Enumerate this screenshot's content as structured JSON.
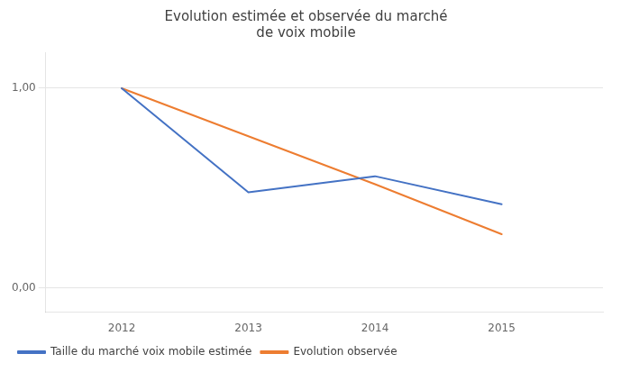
{
  "chart_data": {
    "type": "line",
    "title": "Evolution estimée et observée du marché\nde voix mobile",
    "x": [
      2012,
      2013,
      2014,
      2015
    ],
    "series": [
      {
        "name": "Taille du marché voix mobile estimée",
        "color": "#4472C4",
        "values": [
          1.0,
          0.48,
          0.56,
          0.42
        ]
      },
      {
        "name": "Evolution observée",
        "color": "#ED7D31",
        "values": [
          1.0,
          0.76,
          0.52,
          0.27
        ]
      }
    ],
    "xlim": [
      2011.4,
      2015.8
    ],
    "xticks": [
      2012,
      2013,
      2014,
      2015
    ],
    "ylim": [
      -0.12,
      1.18
    ],
    "yticks": [
      {
        "value": 0.0,
        "label": "0,00"
      },
      {
        "value": 1.0,
        "label": "1,00"
      }
    ],
    "grid": "y",
    "legend": "bottom"
  }
}
